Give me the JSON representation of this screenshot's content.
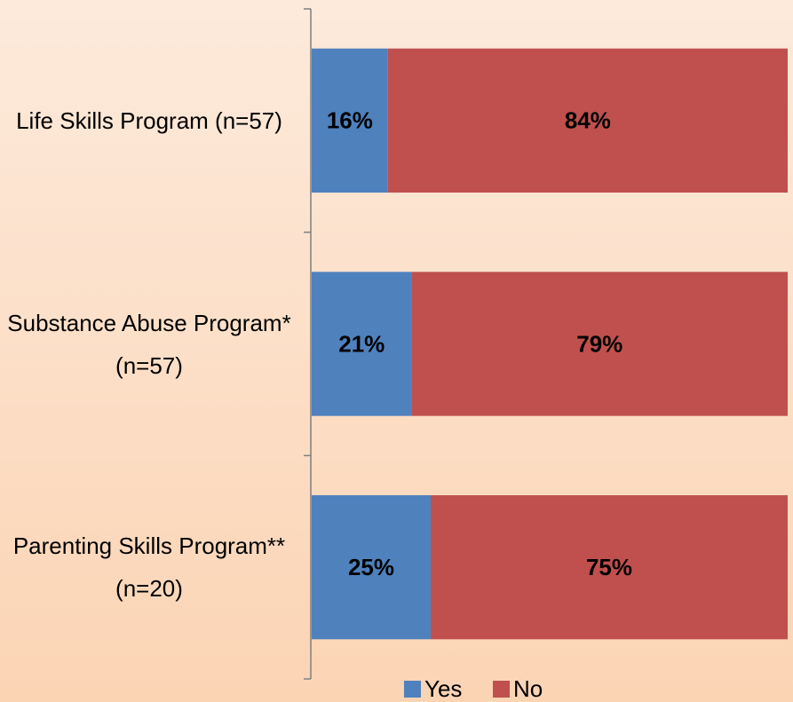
{
  "chart_data": {
    "type": "stacked-bar-horizontal",
    "categories": [
      "Life Skills Program (n=57)",
      "Substance Abuse Program* (n=57)",
      "Parenting Skills Program** (n=20)"
    ],
    "series": [
      {
        "name": "Yes",
        "color": "#4f81bd",
        "values": [
          16,
          21,
          25
        ],
        "value_labels": [
          "16%",
          "21%",
          "25%"
        ]
      },
      {
        "name": "No",
        "color": "#c0504d",
        "values": [
          84,
          79,
          75
        ],
        "value_labels": [
          "84%",
          "79%",
          "75%"
        ]
      }
    ],
    "xlim": [
      0,
      100
    ],
    "legend": "bottom"
  }
}
